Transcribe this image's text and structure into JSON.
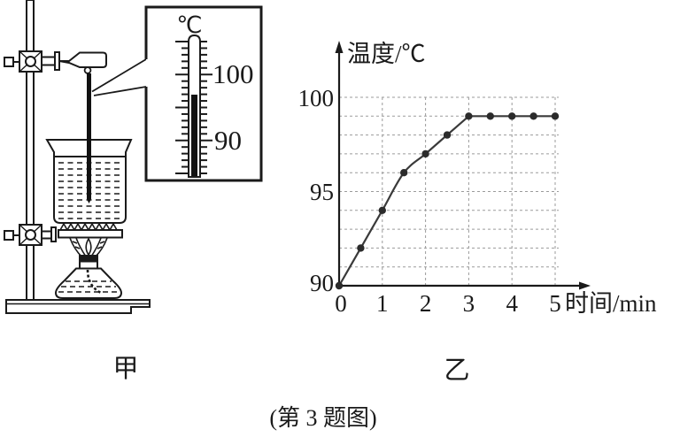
{
  "figure": {
    "caption": "(第 3 题图)",
    "apparatus_label": "甲",
    "graph_label": "乙"
  },
  "thermometer_inset": {
    "unit": "℃",
    "labels": {
      "upper": "100",
      "lower": "90"
    },
    "reading_celsius": 97
  },
  "chart_data": {
    "type": "scatter",
    "title": "",
    "ylabel": "温度/℃",
    "xlabel": "时间/min",
    "x": [
      0,
      0.5,
      1,
      1.5,
      2,
      2.5,
      3,
      3.5,
      4,
      4.5,
      5
    ],
    "y": [
      90,
      92,
      94,
      96,
      97,
      98,
      99,
      99,
      99,
      99,
      99
    ],
    "xticks": [
      0,
      1,
      2,
      3,
      4,
      5
    ],
    "yticks": [
      90,
      95,
      100
    ],
    "xlim": [
      0,
      5.6
    ],
    "ylim": [
      90,
      101
    ],
    "grid": true,
    "grid_step": {
      "x": 1,
      "y": 1
    },
    "boiling_plateau_celsius": 99,
    "legend": []
  },
  "colors": {
    "ink": "#1a1a1a",
    "grid": "#9b9b9b",
    "mercury": "#111111",
    "curve": "#3a3a3a",
    "dot": "#2b2b2b",
    "background": "#ffffff"
  }
}
